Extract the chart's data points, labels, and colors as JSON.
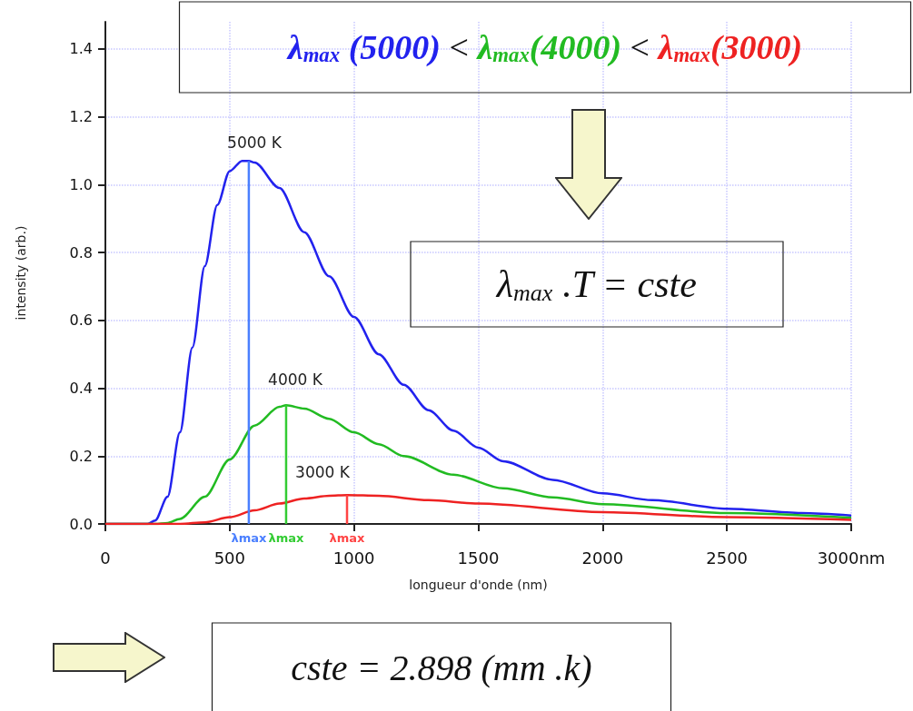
{
  "chart_data": {
    "type": "line",
    "xlabel": "longueur d'onde (nm)",
    "ylabel": "intensity (arb.)",
    "xlim": [
      0,
      3000
    ],
    "ylim": [
      0,
      1.48
    ],
    "xticks": [
      0,
      500,
      1000,
      1500,
      2000,
      2500,
      {
        "value": 3000,
        "label": "3000nm"
      }
    ],
    "yticks": [
      {
        "value": 0,
        "label": "0.0"
      },
      {
        "value": 0.2,
        "label": "0.2"
      },
      {
        "value": 0.4,
        "label": "0.4"
      },
      {
        "value": 0.6,
        "label": "0.6"
      },
      {
        "value": 0.8,
        "label": "0.8"
      },
      {
        "value": 1.0,
        "label": "1.0"
      },
      {
        "value": 1.2,
        "label": "1.2"
      },
      {
        "value": 1.4,
        "label": "1.4"
      }
    ],
    "grid": true,
    "marker": "none",
    "series": [
      {
        "color": "#2222ee",
        "x": [
          0,
          100,
          170,
          200,
          250,
          300,
          350,
          400,
          450,
          500,
          550,
          577,
          600,
          700,
          800,
          900,
          1000,
          1100,
          1200,
          1300,
          1400,
          1500,
          1600,
          1800,
          2000,
          2200,
          2500,
          2800,
          3000
        ],
        "values": [
          0,
          0,
          0,
          0.01,
          0.08,
          0.27,
          0.52,
          0.76,
          0.94,
          1.04,
          1.07,
          1.07,
          1.065,
          0.99,
          0.86,
          0.73,
          0.61,
          0.5,
          0.41,
          0.335,
          0.275,
          0.225,
          0.185,
          0.13,
          0.09,
          0.07,
          0.045,
          0.032,
          0.025
        ]
      },
      {
        "color": "#22bb22",
        "x": [
          0,
          200,
          250,
          300,
          400,
          500,
          600,
          700,
          727,
          800,
          900,
          1000,
          1100,
          1200,
          1400,
          1600,
          1800,
          2000,
          2500,
          3000
        ],
        "values": [
          0,
          0,
          0.003,
          0.015,
          0.08,
          0.19,
          0.29,
          0.345,
          0.35,
          0.34,
          0.31,
          0.27,
          0.235,
          0.2,
          0.145,
          0.105,
          0.078,
          0.058,
          0.032,
          0.018
        ]
      },
      {
        "color": "#ee2222",
        "x": [
          0,
          300,
          400,
          500,
          600,
          700,
          800,
          900,
          972,
          1100,
          1300,
          1500,
          2000,
          2500,
          3000
        ],
        "values": [
          0,
          0,
          0.005,
          0.02,
          0.04,
          0.06,
          0.075,
          0.083,
          0.085,
          0.083,
          0.07,
          0.06,
          0.035,
          0.02,
          0.012
        ]
      },
      {
        "color": "#4a7fff",
        "x": [
          577,
          577
        ],
        "values": [
          0,
          1.07
        ]
      },
      {
        "color": "#33cc33",
        "x": [
          727,
          727
        ],
        "values": [
          0,
          0.35
        ]
      },
      {
        "color": "#ff4444",
        "x": [
          972,
          972
        ],
        "values": [
          0,
          0.085
        ]
      }
    ],
    "annotations": [
      "5000 K",
      "4000 K",
      "3000 K",
      {
        "text": "λmax",
        "x": 577,
        "y": 0
      },
      {
        "text": "λmax",
        "x": 727,
        "y": 0
      },
      {
        "text": "λmax",
        "x": 972,
        "y": 0
      },
      "λ$_{max}$ (5000) < λ$_{max}$(4000) < λ$_{max}$(3000)",
      "λ$_{max}$ .T = cste",
      "cste = 2.898 (mm .k)"
    ]
  }
}
